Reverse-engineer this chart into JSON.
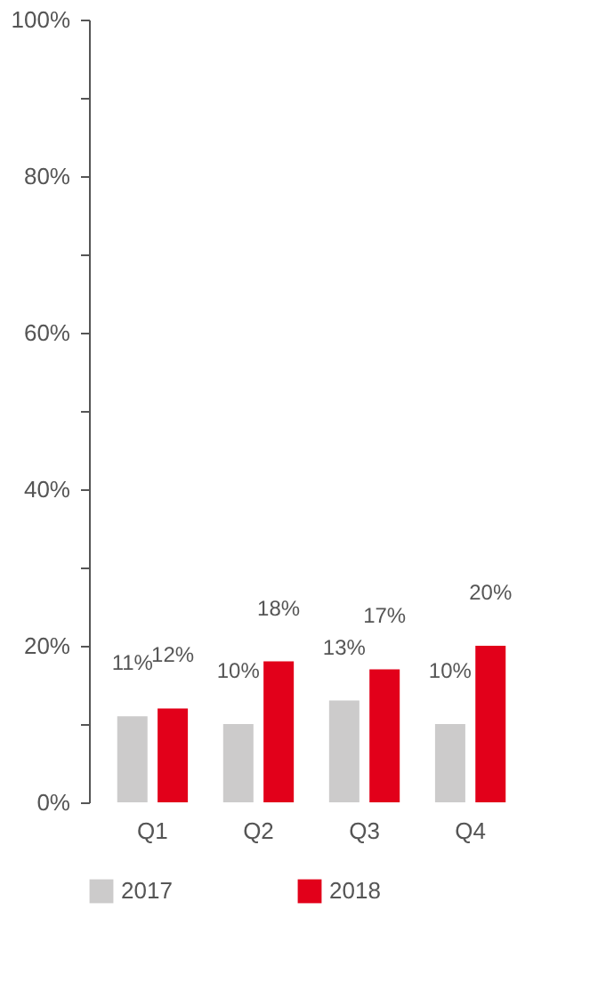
{
  "chart_data": {
    "type": "bar",
    "categories": [
      "Q1",
      "Q2",
      "Q3",
      "Q4"
    ],
    "series": [
      {
        "name": "2017",
        "color": "#cccbcb",
        "values": [
          11,
          10,
          13,
          10
        ],
        "value_labels": [
          "11%",
          "10%",
          "13%",
          "10%"
        ]
      },
      {
        "name": "2018",
        "color": "#e2001a",
        "values": [
          12,
          18,
          17,
          20
        ],
        "value_labels": [
          "12%",
          "18%",
          "17%",
          "20%"
        ]
      }
    ],
    "ylim": [
      0,
      100
    ],
    "yticks": [
      {
        "value": 0,
        "label": "0%"
      },
      {
        "value": 10,
        "label": null
      },
      {
        "value": 20,
        "label": "20%"
      },
      {
        "value": 30,
        "label": null
      },
      {
        "value": 40,
        "label": "40%"
      },
      {
        "value": 50,
        "label": null
      },
      {
        "value": 60,
        "label": "60%"
      },
      {
        "value": 70,
        "label": null
      },
      {
        "value": 80,
        "label": "80%"
      },
      {
        "value": 90,
        "label": null
      },
      {
        "value": 100,
        "label": "100%"
      }
    ],
    "grid": false,
    "legend": "bottom"
  }
}
